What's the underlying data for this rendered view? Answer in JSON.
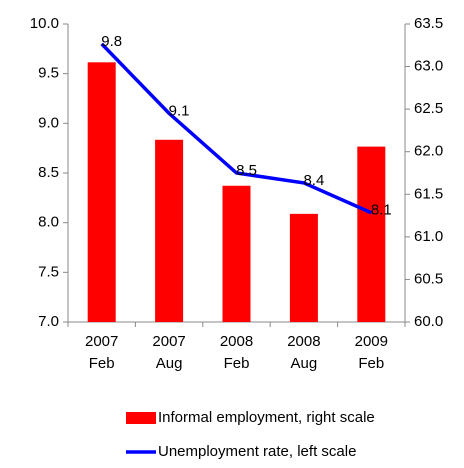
{
  "chart_data": {
    "type": "bar_line",
    "categories": [
      "2007 Feb",
      "2007 Aug",
      "2008 Feb",
      "2008 Aug",
      "2009 Feb"
    ],
    "series": [
      {
        "name": "Informal employment, right scale",
        "type": "bar",
        "axis": "y2",
        "color": "#ff0000",
        "values": [
          63.05,
          62.14,
          61.6,
          61.27,
          62.06
        ]
      },
      {
        "name": "Unemployment rate, left scale",
        "type": "line",
        "axis": "y",
        "color": "#0000ff",
        "values": [
          9.8,
          9.1,
          8.5,
          8.4,
          8.1
        ]
      }
    ],
    "ylim": [
      7,
      10
    ],
    "yticks": [
      {
        "value": 7,
        "label": "7.0"
      },
      {
        "value": 7.5,
        "label": "7.5"
      },
      {
        "value": 8,
        "label": "8.0"
      },
      {
        "value": 8.5,
        "label": "8.5"
      },
      {
        "value": 9,
        "label": "9.0"
      },
      {
        "value": 9.5,
        "label": "9.5"
      },
      {
        "value": 10,
        "label": "10.0"
      }
    ],
    "y2lim": [
      60,
      63.5
    ],
    "y2ticks": [
      {
        "value": 60,
        "label": "60.0"
      },
      {
        "value": 60.5,
        "label": "60.5"
      },
      {
        "value": 61,
        "label": "61.0"
      },
      {
        "value": 61.5,
        "label": "61.5"
      },
      {
        "value": 62,
        "label": "62.0"
      },
      {
        "value": 62.5,
        "label": "62.5"
      },
      {
        "value": 63,
        "label": "63.0"
      },
      {
        "value": 63.5,
        "label": "63.5"
      }
    ],
    "grid": false,
    "legend": "bottom"
  }
}
